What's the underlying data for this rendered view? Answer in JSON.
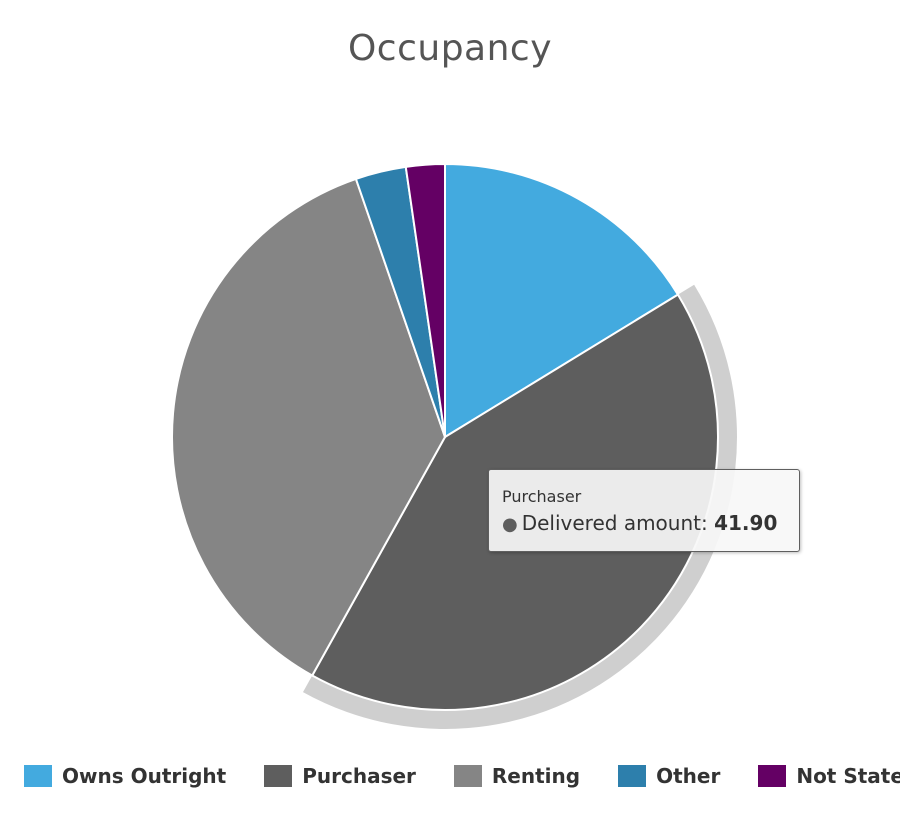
{
  "chart_data": {
    "type": "pie",
    "title": "Occupancy",
    "slices": [
      {
        "name": "Owns Outright",
        "value": 16.3,
        "color": "#43aadf"
      },
      {
        "name": "Purchaser",
        "value": 41.9,
        "color": "#5e5e5e"
      },
      {
        "name": "Renting",
        "value": 36.7,
        "color": "#858585"
      },
      {
        "name": "Other",
        "value": 3.0,
        "color": "#2d7fac"
      },
      {
        "name": "Not Stated",
        "value": 2.3,
        "color": "#640064"
      }
    ],
    "highlighted": "Purchaser",
    "legend_position": "bottom"
  },
  "tooltip": {
    "title": "Purchaser",
    "series_label": "Delivered amount:",
    "value": "41.90"
  }
}
